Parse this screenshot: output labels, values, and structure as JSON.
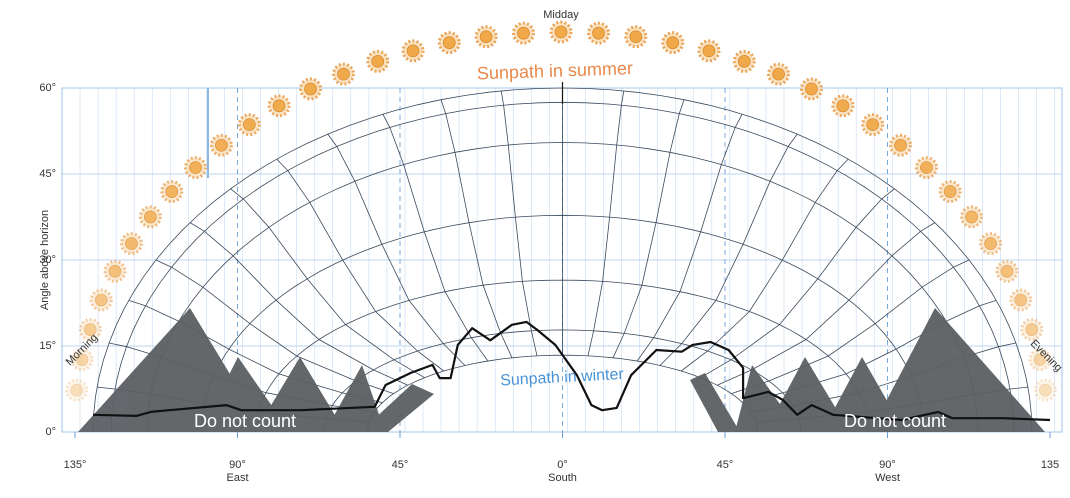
{
  "chart_data": {
    "type": "line",
    "y_label": "Angle above horizon",
    "annotations": {
      "midday": "Midday",
      "summer": "Sunpath in summer",
      "winter": "Sunpath in winter",
      "morning": "Morning",
      "evening": "Evening",
      "excluded": [
        "Do not count",
        "Do not count"
      ]
    },
    "x": [
      -130,
      -118,
      -114,
      -109,
      -93,
      -89,
      -72.5,
      -52,
      -49,
      -42,
      -36,
      -34,
      -31,
      -29,
      -25,
      -20,
      -14,
      -10,
      -7,
      -2,
      4,
      8,
      11,
      15,
      19,
      26,
      33,
      36,
      41,
      46,
      50,
      50,
      57,
      61,
      65,
      69,
      75,
      94,
      104,
      108,
      122,
      135
    ],
    "series": [
      {
        "color": "#111111",
        "values": [
          3.0,
          2.8,
          3.5,
          3.8,
          4.7,
          3.8,
          3.8,
          4.4,
          8.2,
          10.3,
          11.7,
          9.4,
          9.4,
          15.2,
          18.1,
          16,
          18.7,
          19.2,
          17.8,
          15.2,
          9.9,
          4.7,
          3.8,
          4.2,
          9.9,
          14.3,
          14,
          15.2,
          15.7,
          14.3,
          11.2,
          5.9,
          7,
          5.6,
          3,
          4.7,
          3,
          2.1,
          3.5,
          2.4,
          2.4,
          2.1
        ]
      }
    ],
    "xlim": [
      -135,
      135
    ],
    "xticks": [
      {
        "value": -135,
        "label": "135°"
      },
      {
        "value": -90,
        "label": "90°",
        "sublabel": "East"
      },
      {
        "value": -45,
        "label": "45°"
      },
      {
        "value": 0,
        "label": "0°",
        "sublabel": "South"
      },
      {
        "value": 45,
        "label": "45°"
      },
      {
        "value": 90,
        "label": "90°",
        "sublabel": "West"
      },
      {
        "value": 135,
        "label": "135"
      }
    ],
    "ylim": [
      0,
      60
    ],
    "yticks": [
      {
        "value": 0,
        "label": "0°"
      },
      {
        "value": 15,
        "label": "15°"
      },
      {
        "value": 30,
        "label": "30°"
      },
      {
        "value": 45,
        "label": "45°"
      },
      {
        "value": 60,
        "label": "60°"
      }
    ],
    "grid": true
  }
}
